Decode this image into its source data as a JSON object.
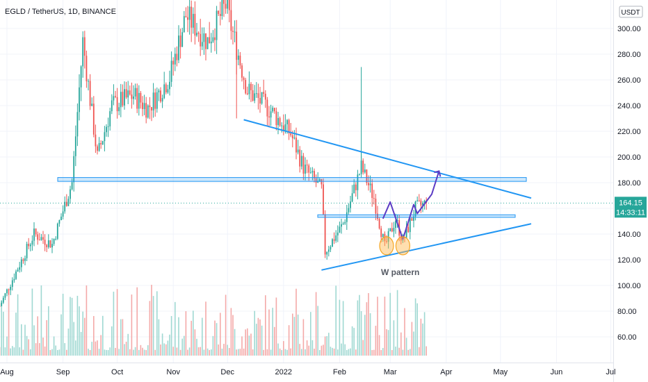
{
  "chart_data": {
    "type": "candlestick",
    "title": "EGLD / TetherUS, 1D, BINANCE",
    "currency": "USDT",
    "x_ticks": [
      "Aug",
      "Sep",
      "Oct",
      "Nov",
      "Dec",
      "2022",
      "Feb",
      "Mar",
      "Apr",
      "May",
      "Jun",
      "Jul"
    ],
    "y_ticks": [
      "60.00",
      "80.00",
      "100.00",
      "120.00",
      "140.00",
      "160.00",
      "180.00",
      "200.00",
      "220.00",
      "240.00",
      "260.00",
      "280.00",
      "300.00"
    ],
    "ylim": [
      42,
      322
    ],
    "price_segments": [
      {
        "start": "2021-07-28",
        "end": "2021-08-16",
        "from": 84,
        "to": 140
      },
      {
        "start": "2021-08-16",
        "end": "2021-08-26",
        "from": 140,
        "to": 132
      },
      {
        "start": "2021-08-26",
        "end": "2021-09-06",
        "from": 132,
        "to": 180
      },
      {
        "start": "2021-09-06",
        "end": "2021-09-12",
        "from": 180,
        "to": 290
      },
      {
        "start": "2021-09-12",
        "end": "2021-09-20",
        "from": 290,
        "to": 200
      },
      {
        "start": "2021-09-20",
        "end": "2021-09-28",
        "from": 200,
        "to": 240
      },
      {
        "start": "2021-09-28",
        "end": "2021-10-10",
        "from": 240,
        "to": 248
      },
      {
        "start": "2021-10-10",
        "end": "2021-10-18",
        "from": 248,
        "to": 238
      },
      {
        "start": "2021-10-18",
        "end": "2021-10-30",
        "from": 238,
        "to": 262
      },
      {
        "start": "2021-10-30",
        "end": "2021-11-08",
        "from": 262,
        "to": 310
      },
      {
        "start": "2021-11-08",
        "end": "2021-11-20",
        "from": 310,
        "to": 290
      },
      {
        "start": "2021-11-20",
        "end": "2021-11-30",
        "from": 290,
        "to": 318
      },
      {
        "start": "2021-11-30",
        "end": "2021-12-12",
        "from": 318,
        "to": 252
      },
      {
        "start": "2021-12-12",
        "end": "2021-12-25",
        "from": 252,
        "to": 236
      },
      {
        "start": "2021-12-25",
        "end": "2022-01-05",
        "from": 236,
        "to": 218
      },
      {
        "start": "2022-01-05",
        "end": "2022-01-12",
        "from": 218,
        "to": 192
      },
      {
        "start": "2022-01-12",
        "end": "2022-01-22",
        "from": 192,
        "to": 175
      },
      {
        "start": "2022-01-22",
        "end": "2022-01-24",
        "from": 175,
        "to": 126
      },
      {
        "start": "2022-01-24",
        "end": "2022-02-03",
        "from": 126,
        "to": 148
      },
      {
        "start": "2022-02-03",
        "end": "2022-02-13",
        "from": 148,
        "to": 192
      },
      {
        "start": "2022-02-13",
        "end": "2022-02-20",
        "from": 192,
        "to": 168
      },
      {
        "start": "2022-02-20",
        "end": "2022-02-26",
        "from": 168,
        "to": 130
      },
      {
        "start": "2022-02-26",
        "end": "2022-03-04",
        "from": 130,
        "to": 152
      },
      {
        "start": "2022-03-04",
        "end": "2022-03-08",
        "from": 152,
        "to": 134
      },
      {
        "start": "2022-03-08",
        "end": "2022-03-15",
        "from": 134,
        "to": 160
      },
      {
        "start": "2022-03-15",
        "end": "2022-03-21",
        "from": 160,
        "to": 164
      }
    ],
    "last_price": "164.15",
    "countdown": "14:33:11",
    "annotations": {
      "resistance_zone": [
        181,
        184
      ],
      "support_zone": [
        153,
        155
      ],
      "upper_trendline": [
        {
          "date": "2021-12-10",
          "price": 229
        },
        {
          "date": "2022-05-18",
          "price": 168
        }
      ],
      "lower_trendline": [
        {
          "date": "2022-01-22",
          "price": 112
        },
        {
          "date": "2022-05-18",
          "price": 148
        }
      ],
      "w_pattern_path": [
        {
          "date": "2022-02-25",
          "price": 152
        },
        {
          "date": "2022-03-01",
          "price": 165
        },
        {
          "date": "2022-03-08",
          "price": 136
        },
        {
          "date": "2022-03-14",
          "price": 163
        },
        {
          "date": "2022-03-16",
          "price": 156
        },
        {
          "date": "2022-03-24",
          "price": 171
        },
        {
          "date": "2022-03-28",
          "price": 189
        }
      ],
      "bottom_markers": [
        {
          "date": "2022-02-27",
          "price": 126
        },
        {
          "date": "2022-03-08",
          "price": 126
        }
      ],
      "w_pattern_label": "W pattern"
    }
  }
}
